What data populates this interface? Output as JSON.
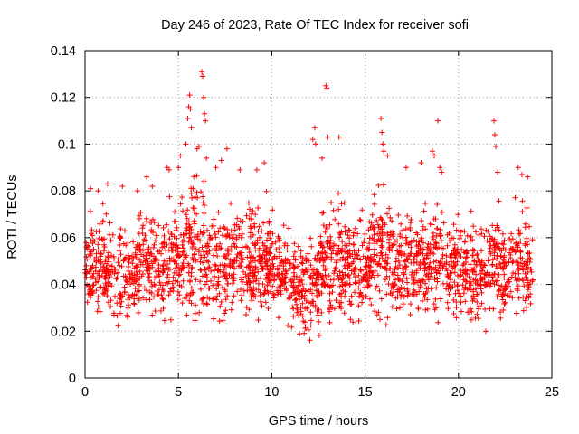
{
  "chart_data": {
    "type": "scatter",
    "title": "Day 246 of 2023, Rate Of TEC Index for receiver sofi",
    "xlabel": "GPS time / hours",
    "ylabel": "ROTI / TECUs",
    "xlim": [
      0,
      25
    ],
    "ylim": [
      0,
      0.14
    ],
    "x_ticks": [
      "0",
      "5",
      "10",
      "15",
      "20",
      "25"
    ],
    "y_ticks": [
      "0",
      "0.02",
      "0.04",
      "0.06",
      "0.08",
      "0.1",
      "0.12",
      "0.14"
    ],
    "grid": true,
    "marker": "plus",
    "color": "#ff0000",
    "envelope": {
      "x": [
        0,
        0.5,
        1,
        1.5,
        2,
        2.5,
        3,
        3.5,
        4,
        4.5,
        5,
        5.5,
        6,
        6.5,
        7,
        7.5,
        8,
        8.5,
        9,
        9.5,
        10,
        10.5,
        11,
        11.5,
        12,
        12.5,
        13,
        13.5,
        14,
        14.5,
        15,
        15.5,
        16,
        16.5,
        17,
        17.5,
        18,
        18.5,
        19,
        19.5,
        20,
        20.5,
        21,
        21.5,
        22,
        22.5,
        23,
        23.5,
        24
      ],
      "low": [
        0.025,
        0.015,
        0.016,
        0.017,
        0.015,
        0.016,
        0.018,
        0.017,
        0.018,
        0.017,
        0.02,
        0.018,
        0.015,
        0.013,
        0.013,
        0.014,
        0.016,
        0.017,
        0.016,
        0.017,
        0.019,
        0.018,
        0.018,
        0.015,
        0.013,
        0.014,
        0.016,
        0.017,
        0.016,
        0.018,
        0.014,
        0.017,
        0.015,
        0.016,
        0.017,
        0.016,
        0.016,
        0.017,
        0.017,
        0.017,
        0.018,
        0.016,
        0.014,
        0.016,
        0.016,
        0.014,
        0.016,
        0.018,
        0.02
      ],
      "high": [
        0.078,
        0.08,
        0.082,
        0.076,
        0.08,
        0.078,
        0.085,
        0.082,
        0.082,
        0.088,
        0.09,
        0.1,
        0.105,
        0.09,
        0.09,
        0.085,
        0.088,
        0.085,
        0.088,
        0.09,
        0.08,
        0.078,
        0.07,
        0.065,
        0.068,
        0.078,
        0.085,
        0.085,
        0.086,
        0.08,
        0.082,
        0.1,
        0.108,
        0.08,
        0.082,
        0.084,
        0.085,
        0.088,
        0.1,
        0.082,
        0.08,
        0.078,
        0.08,
        0.085,
        0.09,
        0.078,
        0.085,
        0.088,
        0.07
      ],
      "points_per_hour": 240
    },
    "outliers": [
      {
        "x": 0.3,
        "y": 0.081
      },
      {
        "x": 0.7,
        "y": 0.08
      },
      {
        "x": 1.2,
        "y": 0.083
      },
      {
        "x": 2.0,
        "y": 0.082
      },
      {
        "x": 2.8,
        "y": 0.08
      },
      {
        "x": 3.3,
        "y": 0.086
      },
      {
        "x": 3.6,
        "y": 0.082
      },
      {
        "x": 4.4,
        "y": 0.09
      },
      {
        "x": 4.5,
        "y": 0.089
      },
      {
        "x": 5.0,
        "y": 0.09
      },
      {
        "x": 5.1,
        "y": 0.095
      },
      {
        "x": 5.4,
        "y": 0.1
      },
      {
        "x": 5.5,
        "y": 0.111
      },
      {
        "x": 5.55,
        "y": 0.116
      },
      {
        "x": 5.6,
        "y": 0.121
      },
      {
        "x": 5.65,
        "y": 0.115
      },
      {
        "x": 5.7,
        "y": 0.107
      },
      {
        "x": 6.0,
        "y": 0.098
      },
      {
        "x": 6.1,
        "y": 0.099
      },
      {
        "x": 6.25,
        "y": 0.131
      },
      {
        "x": 6.3,
        "y": 0.129
      },
      {
        "x": 6.35,
        "y": 0.12
      },
      {
        "x": 6.4,
        "y": 0.113
      },
      {
        "x": 6.45,
        "y": 0.11
      },
      {
        "x": 6.5,
        "y": 0.094
      },
      {
        "x": 7.0,
        "y": 0.09
      },
      {
        "x": 7.3,
        "y": 0.093
      },
      {
        "x": 7.6,
        "y": 0.098
      },
      {
        "x": 8.3,
        "y": 0.089
      },
      {
        "x": 9.2,
        "y": 0.089
      },
      {
        "x": 9.6,
        "y": 0.092
      },
      {
        "x": 12.2,
        "y": 0.102
      },
      {
        "x": 12.3,
        "y": 0.107
      },
      {
        "x": 12.35,
        "y": 0.1
      },
      {
        "x": 12.9,
        "y": 0.125
      },
      {
        "x": 12.95,
        "y": 0.124
      },
      {
        "x": 13.0,
        "y": 0.103
      },
      {
        "x": 12.7,
        "y": 0.094
      },
      {
        "x": 13.6,
        "y": 0.103
      },
      {
        "x": 15.85,
        "y": 0.111
      },
      {
        "x": 15.9,
        "y": 0.105
      },
      {
        "x": 15.95,
        "y": 0.1
      },
      {
        "x": 16.0,
        "y": 0.097
      },
      {
        "x": 16.2,
        "y": 0.095
      },
      {
        "x": 17.2,
        "y": 0.09
      },
      {
        "x": 18.0,
        "y": 0.092
      },
      {
        "x": 18.6,
        "y": 0.097
      },
      {
        "x": 18.7,
        "y": 0.095
      },
      {
        "x": 18.9,
        "y": 0.11
      },
      {
        "x": 19.0,
        "y": 0.09
      },
      {
        "x": 19.1,
        "y": 0.088
      },
      {
        "x": 21.9,
        "y": 0.11
      },
      {
        "x": 21.95,
        "y": 0.104
      },
      {
        "x": 22.0,
        "y": 0.099
      },
      {
        "x": 22.1,
        "y": 0.088
      },
      {
        "x": 23.2,
        "y": 0.09
      },
      {
        "x": 23.4,
        "y": 0.087
      },
      {
        "x": 23.7,
        "y": 0.086
      }
    ]
  }
}
